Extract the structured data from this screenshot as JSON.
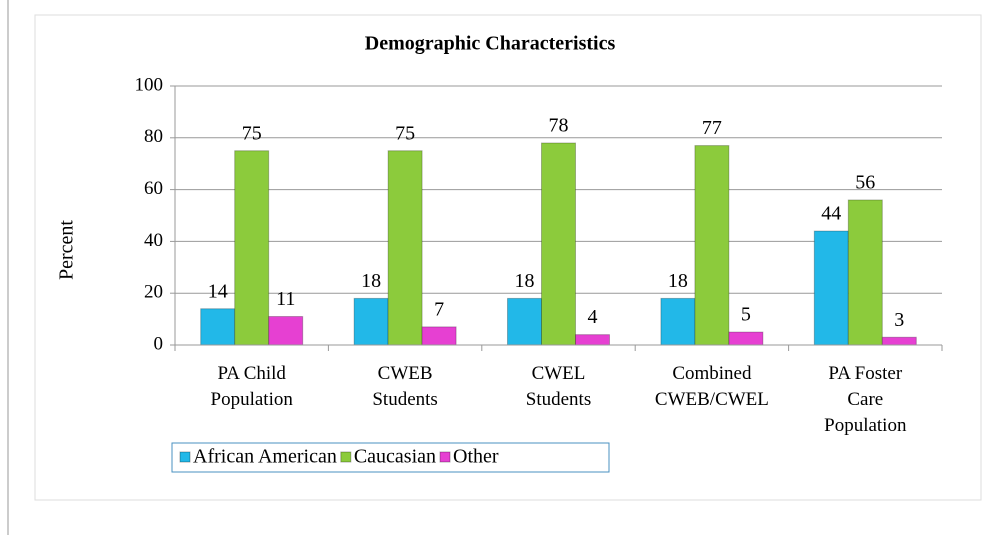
{
  "chart_data": {
    "type": "bar",
    "title": "Demographic Characteristics",
    "y_label": "Percent",
    "categories": [
      [
        "PA Child",
        "Population"
      ],
      [
        "CWEB",
        "Students"
      ],
      [
        "CWEL",
        "Students"
      ],
      [
        "Combined",
        "CWEB/CWEL"
      ],
      [
        "PA Foster",
        "Care",
        "Population"
      ]
    ],
    "series": [
      {
        "name": "African American",
        "color": "#22b8e8",
        "values": [
          14,
          18,
          18,
          18,
          44
        ]
      },
      {
        "name": "Caucasian",
        "color": "#8ccb3c",
        "values": [
          75,
          75,
          78,
          77,
          56
        ]
      },
      {
        "name": "Other",
        "color": "#e640d2",
        "values": [
          11,
          7,
          4,
          5,
          3
        ]
      }
    ],
    "ylim": [
      0,
      100
    ],
    "yticks": [
      0,
      20,
      40,
      60,
      80,
      100
    ],
    "grid": true,
    "legend": "bottom"
  }
}
